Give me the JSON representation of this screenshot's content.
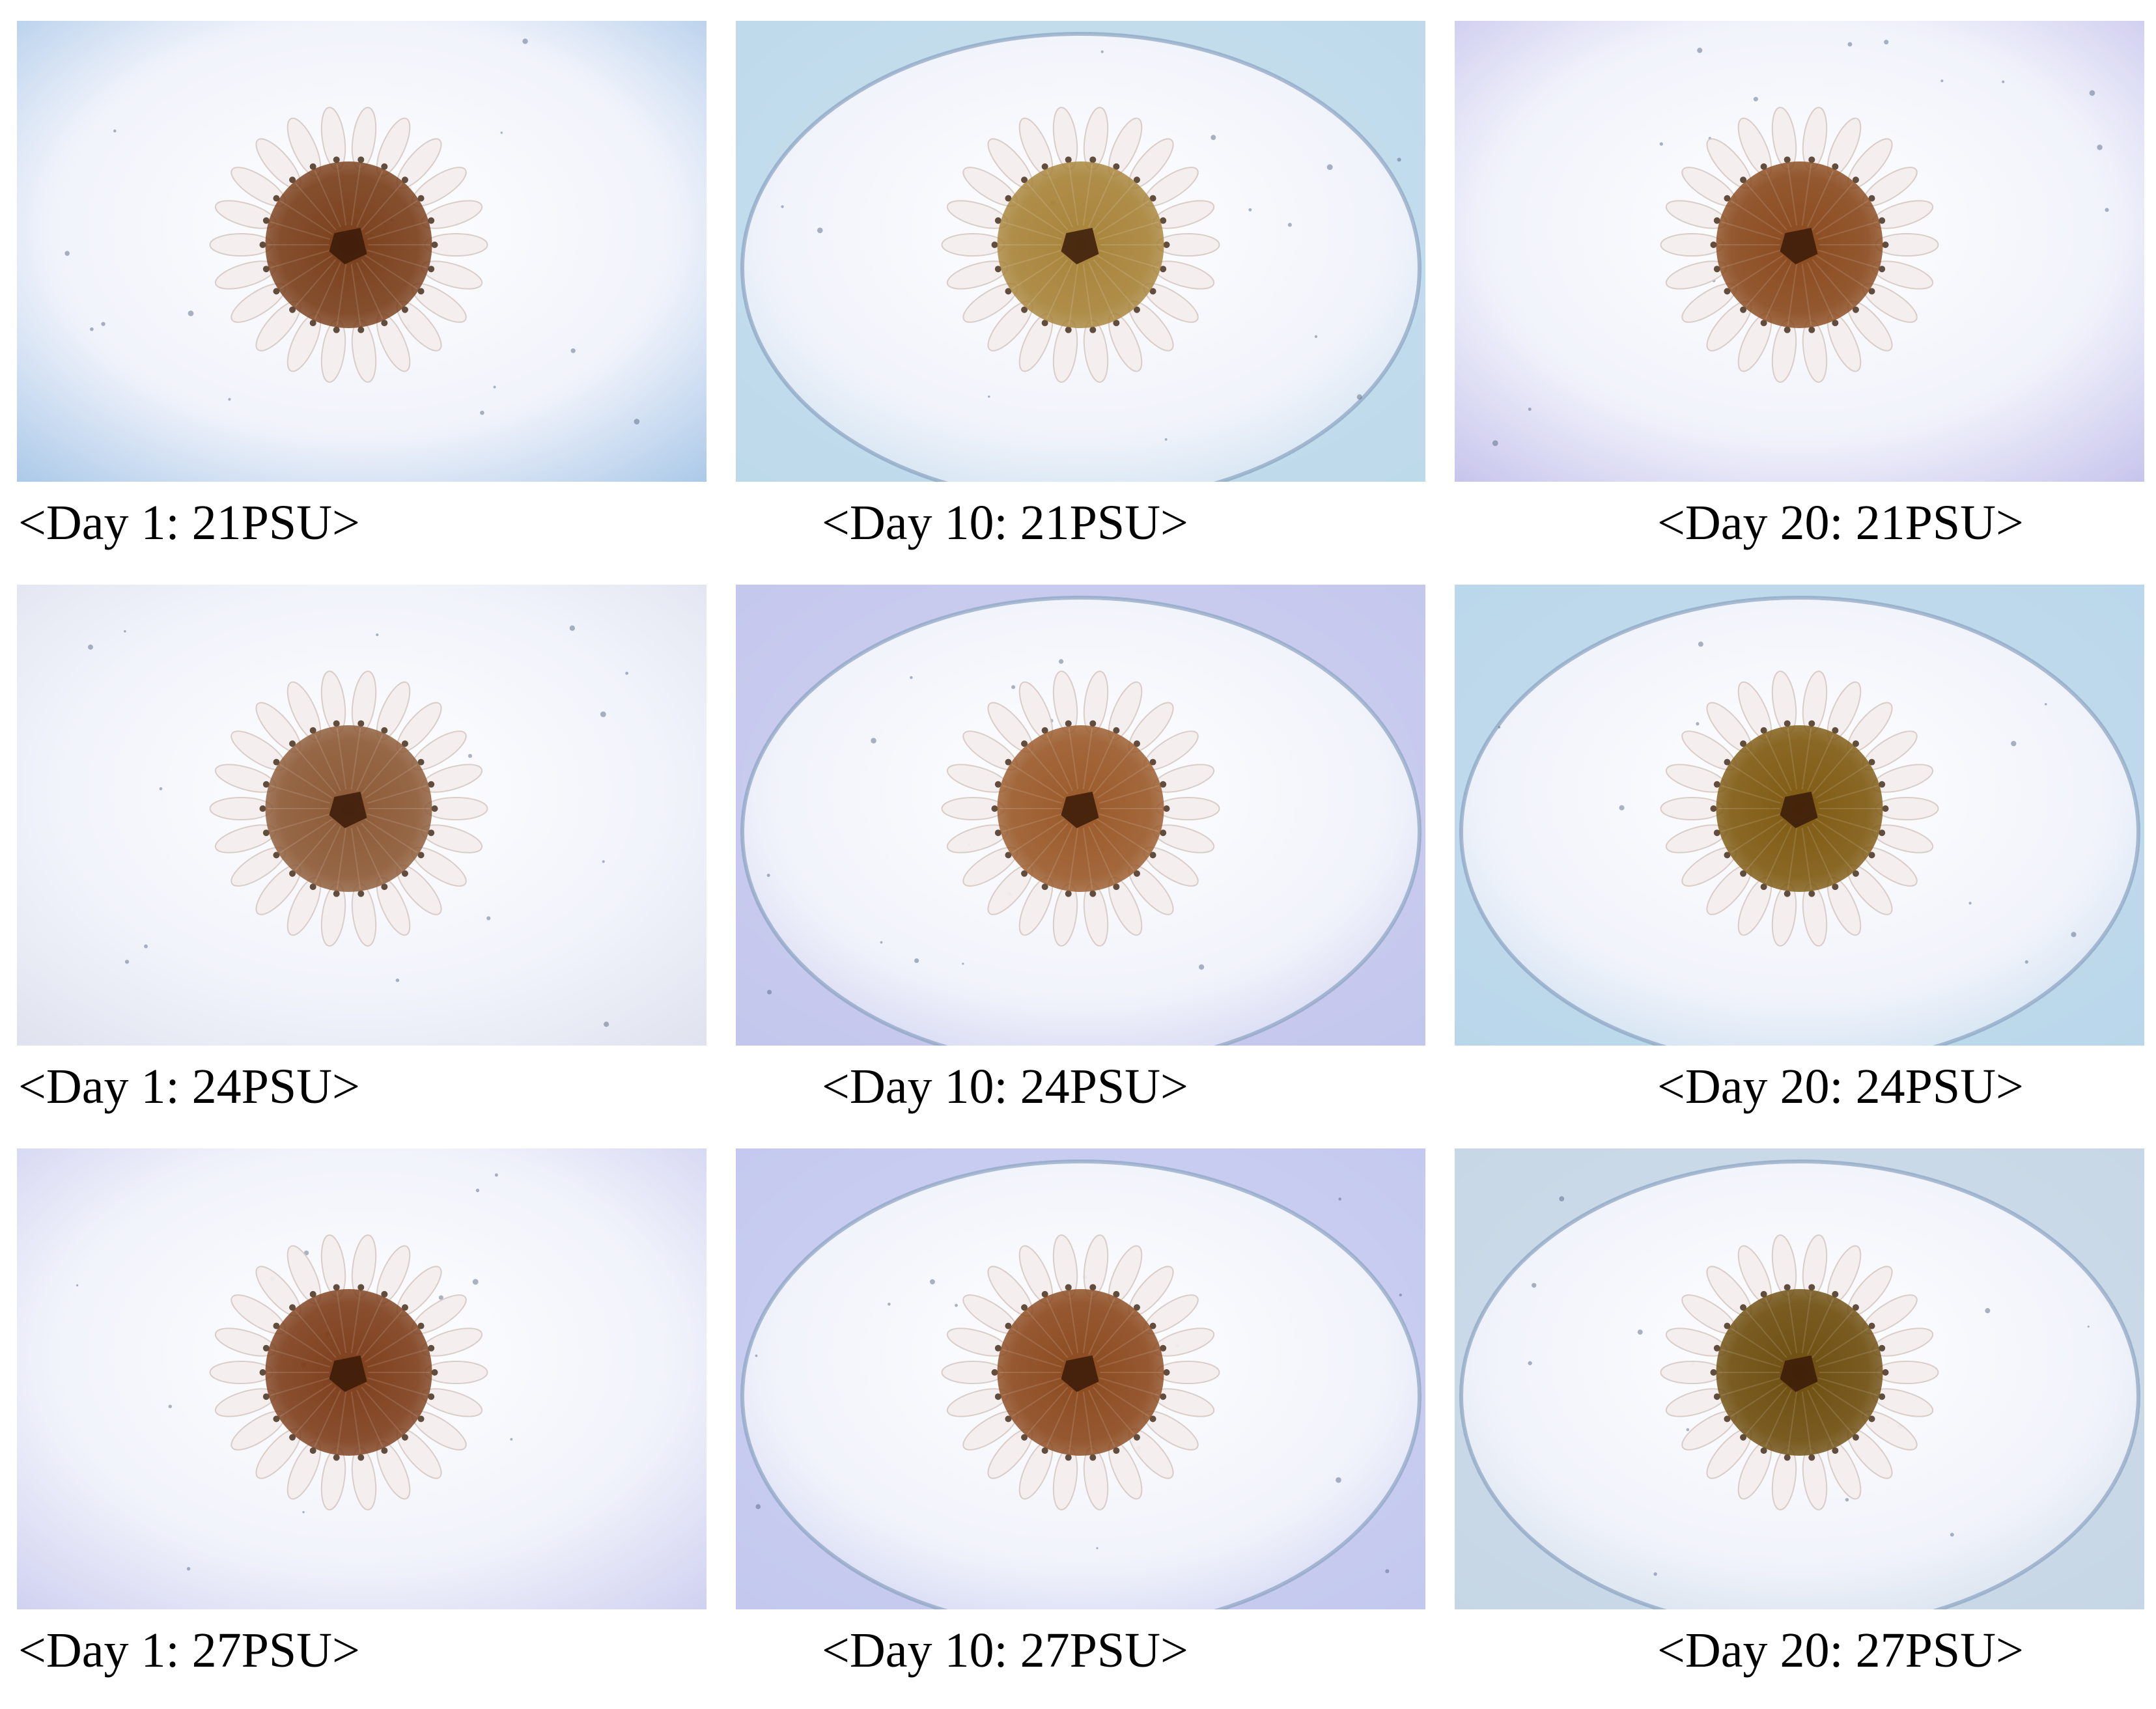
{
  "figure": {
    "rows": [
      {
        "salinity": "21PSU",
        "panels": [
          {
            "label": "<Day 1: 21PSU>",
            "day": 1,
            "tint": "#a9c8e8",
            "bell_color": "#7a3f1b",
            "well_edge": false
          },
          {
            "label": "<Day 10: 21PSU>",
            "day": 10,
            "tint": "#bcd9ea",
            "bell_color": "#a8843a",
            "well_edge": true
          },
          {
            "label": "<Day 20: 21PSU>",
            "day": 20,
            "tint": "#c6c3ec",
            "bell_color": "#8a4a1e",
            "well_edge": false
          }
        ]
      },
      {
        "salinity": "24PSU",
        "panels": [
          {
            "label": "<Day 1: 24PSU>",
            "day": 1,
            "tint": "#dfe2ee",
            "bell_color": "#8d5a36",
            "well_edge": false
          },
          {
            "label": "<Day 10: 24PSU>",
            "day": 10,
            "tint": "#c3c6ec",
            "bell_color": "#9a5a2a",
            "well_edge": true
          },
          {
            "label": "<Day 20: 24PSU>",
            "day": 20,
            "tint": "#b9d6ea",
            "bell_color": "#7f5a12",
            "well_edge": true
          }
        ]
      },
      {
        "salinity": "27PSU",
        "panels": [
          {
            "label": "<Day 1: 27PSU>",
            "day": 1,
            "tint": "#cfd0f0",
            "bell_color": "#7e3f1c",
            "well_edge": false
          },
          {
            "label": "<Day 10: 27PSU>",
            "day": 10,
            "tint": "#c3c8ee",
            "bell_color": "#8c4a1f",
            "well_edge": true
          },
          {
            "label": "<Day 20: 27PSU>",
            "day": 20,
            "tint": "#c5d6e4",
            "bell_color": "#6e4e0f",
            "well_edge": true
          }
        ]
      }
    ]
  }
}
